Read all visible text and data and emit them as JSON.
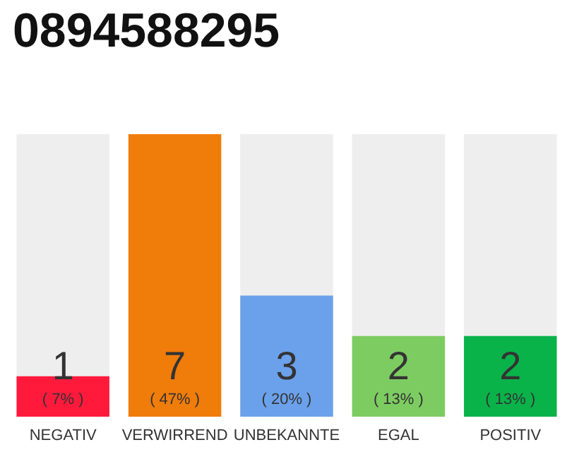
{
  "chart_data": {
    "type": "bar",
    "title": "0894588295",
    "categories": [
      "NEGATIV",
      "VERWIRREND",
      "UNBEKANNTE",
      "EGAL",
      "POSITIV"
    ],
    "values": [
      1,
      7,
      3,
      2,
      2
    ],
    "colors": [
      "#ff1a3c",
      "#f07c0a",
      "#6aa1ea",
      "#7dcc61",
      "#0ab34a"
    ],
    "value_labels": [
      "1\n( 7% )",
      "7\n( 47% )",
      "3\n( 20% )",
      "2\n( 13% )",
      "2\n( 13% )"
    ],
    "grid": false
  }
}
